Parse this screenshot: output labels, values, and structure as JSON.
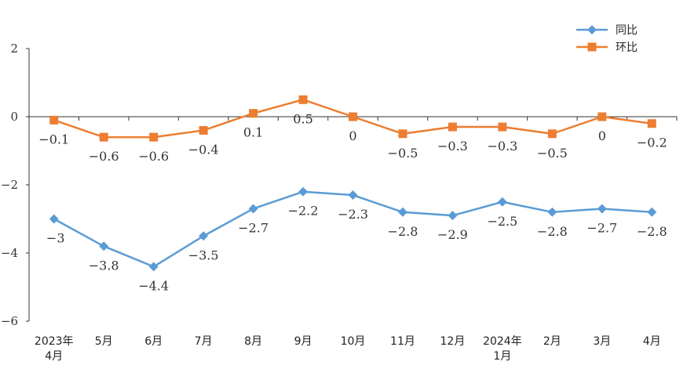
{
  "chart_data": {
    "type": "line",
    "categories": [
      [
        "2023年",
        "4月"
      ],
      [
        "5月"
      ],
      [
        "6月"
      ],
      [
        "7月"
      ],
      [
        "8月"
      ],
      [
        "9月"
      ],
      [
        "10月"
      ],
      [
        "11月"
      ],
      [
        "12月"
      ],
      [
        "2024年",
        "1月"
      ],
      [
        "2月"
      ],
      [
        "3月"
      ],
      [
        "4月"
      ]
    ],
    "ylim": [
      -6,
      2
    ],
    "yticks": [
      2,
      0,
      -2,
      -4,
      -6
    ],
    "legend_position": "top-right",
    "grid": false,
    "series": [
      {
        "name": "同比",
        "color": "#5b9bd5",
        "marker": "diamond",
        "values": [
          -3,
          -3.8,
          -4.4,
          -3.5,
          -2.7,
          -2.2,
          -2.3,
          -2.8,
          -2.9,
          -2.5,
          -2.8,
          -2.7,
          -2.8
        ],
        "labels": [
          "-3",
          "-3.8",
          "-4.4",
          "-3.5",
          "-2.7",
          "-2.2",
          "-2.3",
          "-2.8",
          "-2.9",
          "-2.5",
          "-2.8",
          "-2.7",
          "-2.8"
        ]
      },
      {
        "name": "环比",
        "color": "#ed7d31",
        "marker": "square",
        "values": [
          -0.1,
          -0.6,
          -0.6,
          -0.4,
          0.1,
          0.5,
          0,
          -0.5,
          -0.3,
          -0.3,
          -0.5,
          0,
          -0.2
        ],
        "labels": [
          "-0.1",
          "-0.6",
          "-0.6",
          "-0.4",
          "0.1",
          "0.5",
          "0",
          "-0.5",
          "-0.3",
          "-0.3",
          "-0.5",
          "0",
          "-0.2"
        ]
      }
    ]
  }
}
